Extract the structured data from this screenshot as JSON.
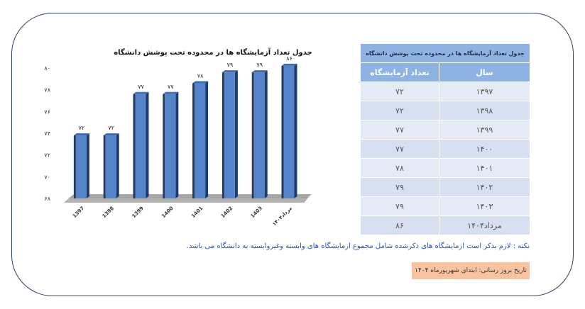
{
  "chart_data": {
    "type": "bar",
    "title": "جدول تعداد آزمایشگاه ها در محدوده تحت پوشش دانشگاه",
    "categories": [
      "1397",
      "1398",
      "1399",
      "1400",
      "1401",
      "1402",
      "1403",
      "مرداد۱۴۰۴"
    ],
    "values": [
      72,
      72,
      77,
      77,
      78,
      79,
      79,
      86
    ],
    "value_labels": [
      "۷۲",
      "۷۲",
      "۷۷",
      "۷۷",
      "۷۸",
      "۷۹",
      "۷۹",
      "۸۶"
    ],
    "display_levels": [
      73.8,
      73.8,
      77.6,
      77.6,
      78.6,
      79.6,
      79.6,
      80.2
    ],
    "ylim": [
      68,
      80
    ],
    "yticks": [
      68,
      70,
      72,
      74,
      76,
      78,
      80
    ],
    "ytick_labels": [
      "۶۸",
      "۷۰",
      "۷۲",
      "۷۴",
      "۷۶",
      "۷۸",
      "۸۰"
    ],
    "xlabel": "",
    "ylabel": "",
    "grid": false,
    "colors": {
      "bar_front": "#5584c8",
      "bar_side": "#223a66",
      "bar_top": "#3f6cad",
      "floor": "#a6a6a6"
    }
  },
  "table": {
    "caption": "جدول تعداد آزمایشگاه ها در محدوده تحت پوشش دانشگاه",
    "headers": {
      "year": "سال",
      "count": "تعداد آزمایشگاه"
    },
    "rows": [
      {
        "year": "۱۳۹۷",
        "count": "۷۲"
      },
      {
        "year": "۱۳۹۸",
        "count": "۷۲"
      },
      {
        "year": "۱۳۹۹",
        "count": "۷۷"
      },
      {
        "year": "۱۴۰۰",
        "count": "۷۷"
      },
      {
        "year": "۱۴۰۱",
        "count": "۷۸"
      },
      {
        "year": "۱۴۰۲",
        "count": "۷۹"
      },
      {
        "year": "۱۴۰۳",
        "count": "۷۹"
      },
      {
        "year": "مرداد۱۴۰۴",
        "count": "۸۶"
      }
    ]
  },
  "note": "نکته : لازم بذکر است ازمایشگاه های ذکرشده شامل مجموع ازمایشگاه های وابسته وغیروابسته به دانشگاه می باشد.",
  "update_text": "تاریخ بروز رسانی: ابتدای  شهریورماه ۱۴۰۴"
}
